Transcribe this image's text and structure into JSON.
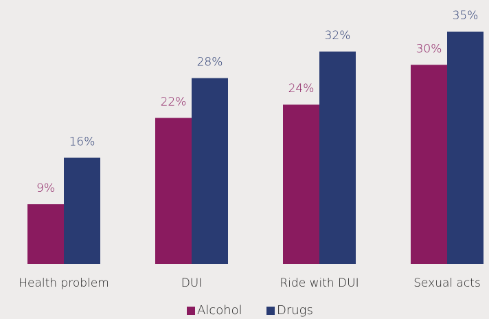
{
  "chart_data": {
    "type": "bar",
    "categories": [
      "Health problem",
      "DUI",
      "Ride with DUI",
      "Sexual acts"
    ],
    "series": [
      {
        "name": "Alcohol",
        "color": "#8a1b5f",
        "values": [
          9,
          22,
          24,
          30
        ],
        "value_labels": [
          "9%",
          "22%",
          "24%",
          "30%"
        ]
      },
      {
        "name": "Drugs",
        "color": "#293b72",
        "values": [
          16,
          28,
          32,
          35
        ],
        "value_labels": [
          "16%",
          "28%",
          "32%",
          "35%"
        ]
      }
    ],
    "legend": "bottom"
  }
}
